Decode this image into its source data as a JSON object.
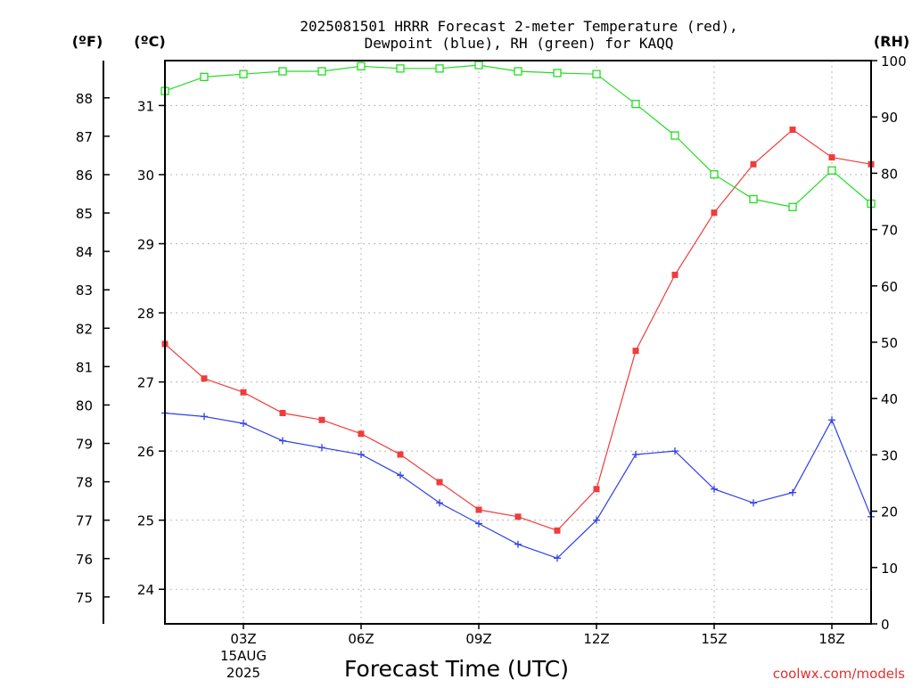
{
  "chart_data": {
    "type": "line",
    "title_line1": "2025081501 HRRR Forecast 2-meter Temperature (red),",
    "title_line2": "Dewpoint (blue), RH (green) for KAQQ",
    "xlabel": "Forecast Time (UTC)",
    "unit_f": "(ºF)",
    "unit_c": "(ºC)",
    "unit_rh": "(RH)",
    "credit": "coolwx.com/models",
    "x": [
      1,
      2,
      3,
      4,
      5,
      6,
      7,
      8,
      9,
      10,
      11,
      12,
      13,
      14,
      15,
      16,
      17,
      18,
      19
    ],
    "xlim": [
      1,
      19
    ],
    "x_ticks": [
      {
        "x": 3,
        "label": "03Z",
        "sub1": "15AUG",
        "sub2": "2025"
      },
      {
        "x": 6,
        "label": "06Z"
      },
      {
        "x": 9,
        "label": "09Z"
      },
      {
        "x": 12,
        "label": "12Z"
      },
      {
        "x": 15,
        "label": "15Z"
      },
      {
        "x": 18,
        "label": "18Z"
      }
    ],
    "ylim_c": [
      23.5,
      31.65
    ],
    "y_ticks_c": [
      24,
      25,
      26,
      27,
      28,
      29,
      30,
      31
    ],
    "y_ticks_f": [
      75,
      76,
      77,
      78,
      79,
      80,
      81,
      82,
      83,
      84,
      85,
      86,
      87,
      88
    ],
    "ylim_rh": [
      0,
      100
    ],
    "y_ticks_rh": [
      0,
      10,
      20,
      30,
      40,
      50,
      60,
      70,
      80,
      90,
      100
    ],
    "grid": true,
    "series": [
      {
        "key": "temperature",
        "axis": "c",
        "color": "#f03c3c",
        "marker": "filled-square",
        "values": [
          27.55,
          27.05,
          26.85,
          26.55,
          26.45,
          26.25,
          25.95,
          25.55,
          25.15,
          25.05,
          24.85,
          25.45,
          27.45,
          28.55,
          29.45,
          30.15,
          30.65,
          30.25,
          30.15
        ]
      },
      {
        "key": "dewpoint",
        "axis": "c",
        "color": "#2f3fe8",
        "marker": "plus",
        "values": [
          26.55,
          26.5,
          26.4,
          26.15,
          26.05,
          25.95,
          25.65,
          25.25,
          24.95,
          24.65,
          24.45,
          25.0,
          25.95,
          26.0,
          25.45,
          25.25,
          25.4,
          26.45,
          25.05
        ]
      },
      {
        "key": "rh",
        "axis": "rh",
        "color": "#22dd22",
        "marker": "open-square",
        "values": [
          94.6,
          97.1,
          97.6,
          98.1,
          98.1,
          99.0,
          98.6,
          98.6,
          99.2,
          98.1,
          97.8,
          97.6,
          92.3,
          86.7,
          79.8,
          75.4,
          74.0,
          80.5,
          74.6
        ]
      }
    ]
  }
}
